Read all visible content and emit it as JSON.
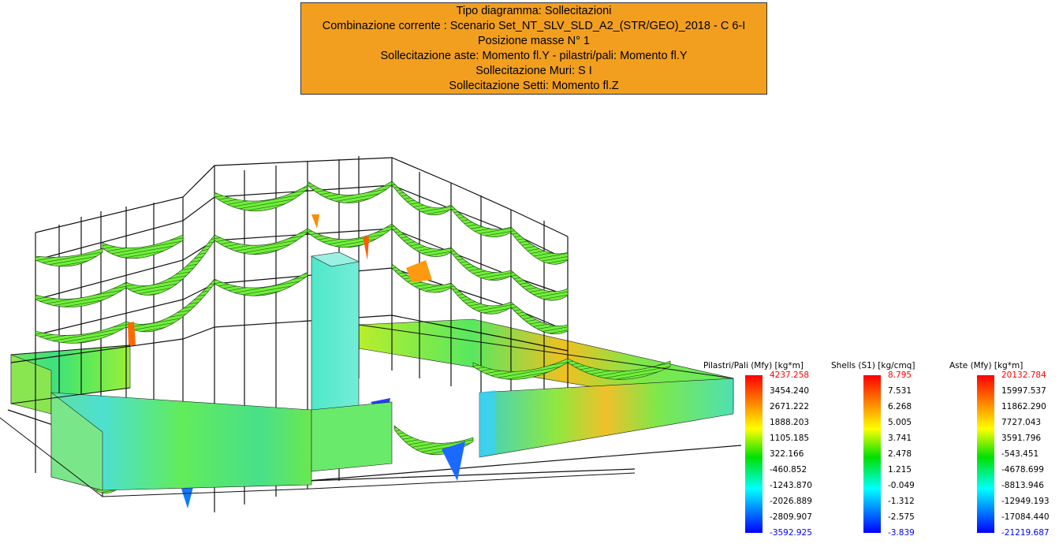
{
  "header": {
    "lines": [
      "Tipo diagramma: Sollecitazioni",
      "Combinazione corrente : Scenario Set_NT_SLV_SLD_A2_(STR/GEO)_2018 - C 6-I",
      "Posizione masse N° 1",
      "Sollecitazione aste: Momento fl.Y - pilastri/pali: Momento fl.Y",
      "Sollecitazione Muri: S I",
      "Sollecitazione Setti: Momento fl.Z"
    ],
    "background": "#f29f1f"
  },
  "legends": [
    {
      "title": "Pilastri/Pali (Mfy) [kg*m]",
      "values": [
        "4237.258",
        "3454.240",
        "2671.222",
        "1888.203",
        "1105.185",
        "322.166",
        "-460.852",
        "-1243.870",
        "-2026.889",
        "-2809.907",
        "-3592.925"
      ]
    },
    {
      "title": "Shells (S1) [kg/cmq]",
      "values": [
        "8.795",
        "7.531",
        "6.268",
        "5.005",
        "3.741",
        "2.478",
        "1.215",
        "-0.049",
        "-1.312",
        "-2.575",
        "-3.839"
      ]
    },
    {
      "title": "Aste (Mfy) [kg*m]",
      "values": [
        "20132.784",
        "15997.537",
        "11862.290",
        "7727.043",
        "3591.796",
        "-543.451",
        "-4678.699",
        "-8813.946",
        "-12949.193",
        "-17084.440",
        "-21219.687"
      ]
    }
  ],
  "colors": {
    "max_label": "#ff0000",
    "min_label": "#0000ff",
    "gradient": [
      "#ff0000",
      "#ff8000",
      "#ffff00",
      "#00e000",
      "#00ffff",
      "#0080ff",
      "#0000ff"
    ]
  }
}
